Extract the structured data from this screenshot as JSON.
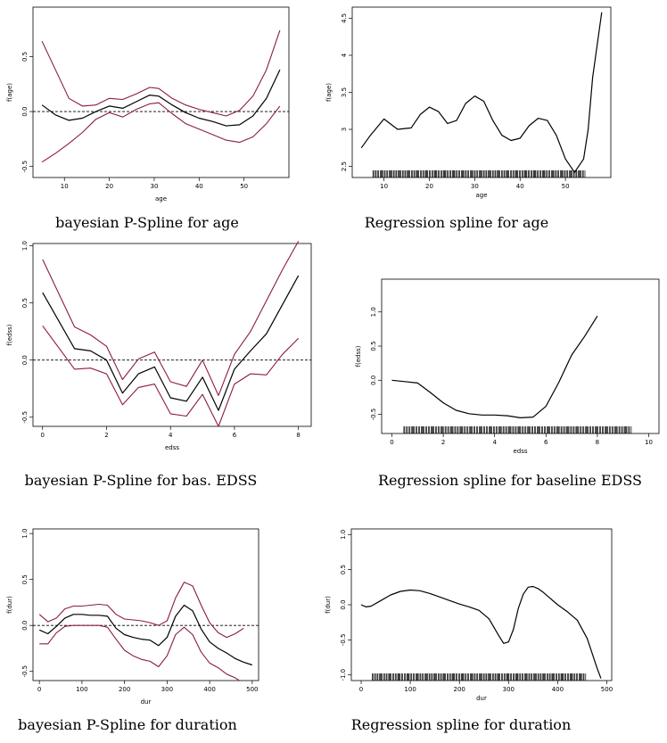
{
  "colors": {
    "line": "#000000",
    "band": "#8b1a4a",
    "zero": "#000000"
  },
  "panels": [
    {
      "caption": "bayesian P-Spline for age",
      "xlabel": "age",
      "ylabel": "f(age)",
      "xlim": [
        3,
        60
      ],
      "ylim": [
        -0.6,
        0.95
      ],
      "xticks": [
        10,
        20,
        30,
        40,
        50
      ],
      "yticks": [
        -0.5,
        0.0,
        0.5
      ],
      "zero_line": true,
      "rug": false,
      "series": [
        {
          "role": "upper",
          "x": [
            5,
            8,
            11,
            14,
            17,
            20,
            23,
            26,
            29,
            31,
            34,
            37,
            40,
            43,
            46,
            49,
            52,
            55,
            58
          ],
          "y": [
            0.64,
            0.38,
            0.12,
            0.05,
            0.06,
            0.12,
            0.11,
            0.16,
            0.22,
            0.21,
            0.12,
            0.06,
            0.02,
            -0.01,
            -0.04,
            0.01,
            0.14,
            0.38,
            0.74
          ]
        },
        {
          "role": "estimate",
          "x": [
            5,
            8,
            11,
            14,
            17,
            20,
            23,
            26,
            29,
            31,
            34,
            37,
            40,
            43,
            46,
            49,
            52,
            55,
            58
          ],
          "y": [
            0.06,
            -0.03,
            -0.08,
            -0.06,
            0.0,
            0.05,
            0.03,
            0.09,
            0.15,
            0.14,
            0.06,
            -0.01,
            -0.06,
            -0.09,
            -0.13,
            -0.12,
            -0.04,
            0.12,
            0.38
          ]
        },
        {
          "role": "lower",
          "x": [
            5,
            8,
            11,
            14,
            17,
            20,
            23,
            26,
            29,
            31,
            34,
            37,
            40,
            43,
            46,
            49,
            52,
            55,
            58
          ],
          "y": [
            -0.46,
            -0.38,
            -0.29,
            -0.19,
            -0.07,
            -0.01,
            -0.05,
            0.02,
            0.07,
            0.08,
            -0.02,
            -0.11,
            -0.16,
            -0.21,
            -0.26,
            -0.28,
            -0.23,
            -0.11,
            0.05
          ]
        }
      ]
    },
    {
      "caption": "Regression spline for age",
      "xlabel": "age",
      "ylabel": "f(age)",
      "xlim": [
        3,
        60
      ],
      "ylim": [
        2.35,
        4.65
      ],
      "xticks": [
        10,
        20,
        30,
        40,
        50
      ],
      "yticks": [
        2.5,
        3.0,
        3.5,
        4.0,
        4.5
      ],
      "zero_line": false,
      "rug": true,
      "series": [
        {
          "role": "estimate",
          "x": [
            5,
            7,
            10,
            13,
            16,
            18,
            20,
            22,
            24,
            26,
            28,
            30,
            32,
            34,
            36,
            38,
            40,
            42,
            44,
            46,
            48,
            50,
            52,
            54,
            55,
            56,
            58
          ],
          "y": [
            2.75,
            2.92,
            3.14,
            3.0,
            3.02,
            3.2,
            3.3,
            3.24,
            3.08,
            3.12,
            3.35,
            3.45,
            3.38,
            3.12,
            2.92,
            2.85,
            2.88,
            3.05,
            3.15,
            3.12,
            2.92,
            2.6,
            2.42,
            2.6,
            3.0,
            3.7,
            4.58
          ]
        }
      ]
    },
    {
      "caption": "bayesian P-Spline for bas. EDSS",
      "xlabel": "edss",
      "ylabel": "f(edss)",
      "xlim": [
        -0.3,
        8.4
      ],
      "ylim": [
        -0.58,
        1.02
      ],
      "xticks": [
        0,
        2,
        4,
        6,
        8
      ],
      "yticks": [
        -0.5,
        0.0,
        0.5,
        1.0
      ],
      "zero_line": true,
      "rug": false,
      "series": [
        {
          "role": "upper",
          "x": [
            0,
            1,
            1.5,
            2,
            2.5,
            3,
            3.5,
            4,
            4.5,
            5,
            5.5,
            6,
            6.5,
            7,
            7.5,
            8
          ],
          "y": [
            0.88,
            0.29,
            0.22,
            0.12,
            -0.17,
            0.01,
            0.07,
            -0.19,
            -0.23,
            0.0,
            -0.31,
            0.05,
            0.25,
            0.52,
            0.79,
            1.04
          ]
        },
        {
          "role": "estimate",
          "x": [
            0,
            1,
            1.5,
            2,
            2.5,
            3,
            3.5,
            4,
            4.5,
            5,
            5.5,
            6,
            6.5,
            7,
            8
          ],
          "y": [
            0.59,
            0.1,
            0.08,
            0.0,
            -0.29,
            -0.12,
            -0.06,
            -0.33,
            -0.36,
            -0.15,
            -0.44,
            -0.08,
            0.08,
            0.23,
            0.74
          ]
        },
        {
          "role": "lower",
          "x": [
            0,
            1,
            1.5,
            2,
            2.5,
            3,
            3.5,
            4,
            4.5,
            5,
            5.5,
            6,
            6.5,
            7,
            7.5,
            8
          ],
          "y": [
            0.3,
            -0.08,
            -0.07,
            -0.12,
            -0.39,
            -0.24,
            -0.21,
            -0.47,
            -0.49,
            -0.3,
            -0.58,
            -0.21,
            -0.12,
            -0.13,
            0.05,
            0.19
          ]
        }
      ]
    },
    {
      "caption": "Regression spline for baseline EDSS",
      "xlabel": "edss",
      "ylabel": "f(edss)",
      "xlim": [
        -0.4,
        10.4
      ],
      "ylim": [
        -0.78,
        1.48
      ],
      "xticks": [
        0,
        2,
        4,
        6,
        8,
        10
      ],
      "yticks": [
        -0.5,
        0.0,
        0.5,
        1.0
      ],
      "zero_line": false,
      "rug": true,
      "series": [
        {
          "role": "estimate",
          "x": [
            0,
            0.5,
            1,
            1.5,
            2,
            2.5,
            3,
            3.5,
            4,
            4.5,
            5,
            5.5,
            6,
            6.5,
            7,
            7.5,
            8
          ],
          "y": [
            0.0,
            -0.02,
            -0.04,
            -0.18,
            -0.33,
            -0.44,
            -0.49,
            -0.51,
            -0.51,
            -0.52,
            -0.55,
            -0.54,
            -0.38,
            -0.03,
            0.37,
            0.64,
            0.94
          ]
        }
      ]
    },
    {
      "caption": "bayesian P-Spline for duration",
      "xlabel": "dur",
      "ylabel": "f(dur)",
      "xlim": [
        -15,
        515
      ],
      "ylim": [
        -0.6,
        1.05
      ],
      "xticks": [
        0,
        100,
        200,
        300,
        400,
        500
      ],
      "yticks": [
        -0.5,
        0.0,
        0.5,
        1.0
      ],
      "zero_line": true,
      "rug": false,
      "series": [
        {
          "role": "upper",
          "x": [
            0,
            20,
            40,
            60,
            80,
            100,
            120,
            140,
            160,
            180,
            200,
            220,
            240,
            260,
            280,
            300,
            320,
            340,
            360,
            380,
            400,
            420,
            440,
            460,
            480
          ],
          "y": [
            0.12,
            0.04,
            0.08,
            0.18,
            0.21,
            0.21,
            0.22,
            0.23,
            0.22,
            0.12,
            0.07,
            0.06,
            0.05,
            0.03,
            0.0,
            0.05,
            0.3,
            0.47,
            0.43,
            0.22,
            0.03,
            -0.08,
            -0.13,
            -0.09,
            -0.03
          ]
        },
        {
          "role": "estimate",
          "x": [
            0,
            20,
            40,
            60,
            80,
            100,
            120,
            140,
            160,
            180,
            200,
            220,
            240,
            260,
            280,
            300,
            320,
            340,
            360,
            380,
            400,
            420,
            440,
            460,
            480,
            500
          ],
          "y": [
            -0.05,
            -0.09,
            -0.01,
            0.08,
            0.12,
            0.12,
            0.11,
            0.11,
            0.1,
            -0.03,
            -0.1,
            -0.13,
            -0.15,
            -0.16,
            -0.22,
            -0.13,
            0.1,
            0.22,
            0.16,
            -0.04,
            -0.18,
            -0.25,
            -0.3,
            -0.36,
            -0.4,
            -0.43
          ]
        },
        {
          "role": "lower",
          "x": [
            0,
            20,
            40,
            60,
            80,
            100,
            120,
            140,
            160,
            180,
            200,
            220,
            240,
            260,
            280,
            300,
            320,
            340,
            360,
            380,
            400,
            420,
            440,
            460,
            470
          ],
          "y": [
            -0.2,
            -0.2,
            -0.08,
            -0.01,
            0.0,
            0.0,
            0.0,
            0.0,
            -0.02,
            -0.15,
            -0.27,
            -0.33,
            -0.37,
            -0.39,
            -0.45,
            -0.33,
            -0.1,
            -0.02,
            -0.1,
            -0.29,
            -0.41,
            -0.46,
            -0.53,
            -0.57,
            -0.6
          ]
        }
      ]
    },
    {
      "caption": "Regression spline for duration",
      "xlabel": "dur",
      "ylabel": "f(dur)",
      "xlim": [
        -20,
        510
      ],
      "ylim": [
        -1.08,
        1.08
      ],
      "xticks": [
        0,
        100,
        200,
        300,
        400,
        500
      ],
      "yticks": [
        -1.0,
        -0.5,
        0.0,
        0.5,
        1.0
      ],
      "zero_line": false,
      "rug": true,
      "series": [
        {
          "role": "estimate",
          "x": [
            0,
            10,
            20,
            40,
            60,
            80,
            100,
            120,
            140,
            160,
            180,
            200,
            220,
            240,
            260,
            280,
            290,
            300,
            310,
            320,
            330,
            340,
            350,
            360,
            370,
            380,
            400,
            420,
            440,
            460,
            480,
            488
          ],
          "y": [
            0.0,
            -0.03,
            -0.02,
            0.06,
            0.14,
            0.19,
            0.21,
            0.2,
            0.16,
            0.11,
            0.06,
            0.01,
            -0.03,
            -0.08,
            -0.2,
            -0.44,
            -0.55,
            -0.53,
            -0.35,
            -0.05,
            0.15,
            0.25,
            0.26,
            0.23,
            0.18,
            0.12,
            0.0,
            -0.1,
            -0.22,
            -0.48,
            -0.9,
            -1.05
          ]
        }
      ]
    }
  ]
}
